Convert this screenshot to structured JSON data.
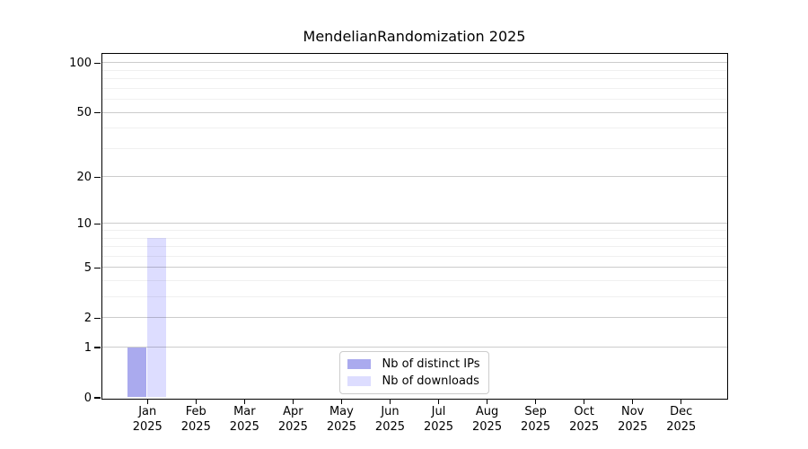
{
  "chart_data": {
    "type": "bar",
    "title": "MendelianRandomization 2025",
    "categories": [
      "Jan",
      "Feb",
      "Mar",
      "Apr",
      "May",
      "Jun",
      "Jul",
      "Aug",
      "Sep",
      "Oct",
      "Nov",
      "Dec"
    ],
    "year_label": "2025",
    "series": [
      {
        "name": "Nb of distinct IPs",
        "color": "#aaaaee",
        "values": [
          1,
          0,
          0,
          0,
          0,
          0,
          0,
          0,
          0,
          0,
          0,
          0
        ]
      },
      {
        "name": "Nb of downloads",
        "color": "#ddddff",
        "values": [
          8,
          0,
          0,
          0,
          0,
          0,
          0,
          0,
          0,
          0,
          0,
          0
        ]
      }
    ],
    "y_scale": "log10(1+x)",
    "y_major_ticks": [
      0,
      1,
      2,
      5,
      10,
      20,
      50,
      100
    ],
    "y_minor_gridlines": [
      3,
      4,
      6,
      7,
      8,
      9,
      30,
      40,
      60,
      70,
      80,
      90
    ],
    "ylim": [
      0,
      114
    ],
    "grid": "horizontal",
    "legend_position": "lower center"
  }
}
